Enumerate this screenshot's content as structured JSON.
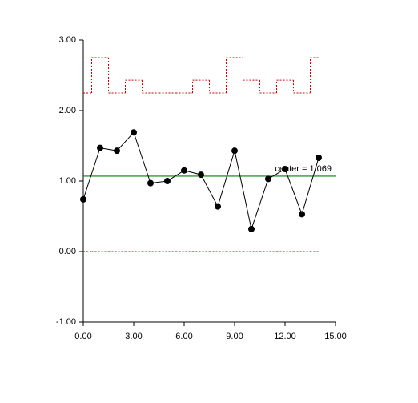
{
  "chart_data": {
    "type": "line",
    "x": [
      0,
      1,
      2,
      3,
      4,
      5,
      6,
      7,
      8,
      9,
      10,
      11,
      12,
      13,
      14
    ],
    "series": [
      {
        "color": "#000000",
        "marker": true,
        "step": false,
        "dashed": false,
        "values": [
          0.74,
          1.47,
          1.43,
          1.69,
          0.97,
          1.0,
          1.15,
          1.09,
          0.64,
          1.43,
          0.32,
          1.03,
          1.17,
          0.53,
          1.33
        ]
      },
      {
        "color": "#cc0000",
        "marker": false,
        "step": true,
        "dashed": true,
        "values": [
          2.25,
          2.75,
          2.25,
          2.43,
          2.25,
          2.25,
          2.25,
          2.43,
          2.25,
          2.75,
          2.43,
          2.25,
          2.43,
          2.25,
          2.75
        ]
      },
      {
        "color": "#cc0000",
        "marker": false,
        "step": true,
        "dashed": true,
        "values": [
          0,
          0,
          0,
          0,
          0,
          0,
          0,
          0,
          0,
          0,
          0,
          0,
          0,
          0,
          0
        ]
      }
    ],
    "reference_line": {
      "value": 1.069,
      "label": "center = 1.069",
      "color": "#008000"
    },
    "xlim": [
      0,
      15
    ],
    "ylim": [
      -1,
      3
    ],
    "xticks": [
      {
        "value": 0,
        "label": "0.00"
      },
      {
        "value": 3,
        "label": "3.00"
      },
      {
        "value": 6,
        "label": "6.00"
      },
      {
        "value": 9,
        "label": "9.00"
      },
      {
        "value": 12,
        "label": "12.00"
      },
      {
        "value": 15,
        "label": "15.00"
      }
    ],
    "yticks": [
      {
        "value": -1,
        "label": "-1.00"
      },
      {
        "value": 0,
        "label": "0.00"
      },
      {
        "value": 1,
        "label": "1.00"
      },
      {
        "value": 2,
        "label": "2.00"
      },
      {
        "value": 3,
        "label": "3.00"
      }
    ]
  }
}
